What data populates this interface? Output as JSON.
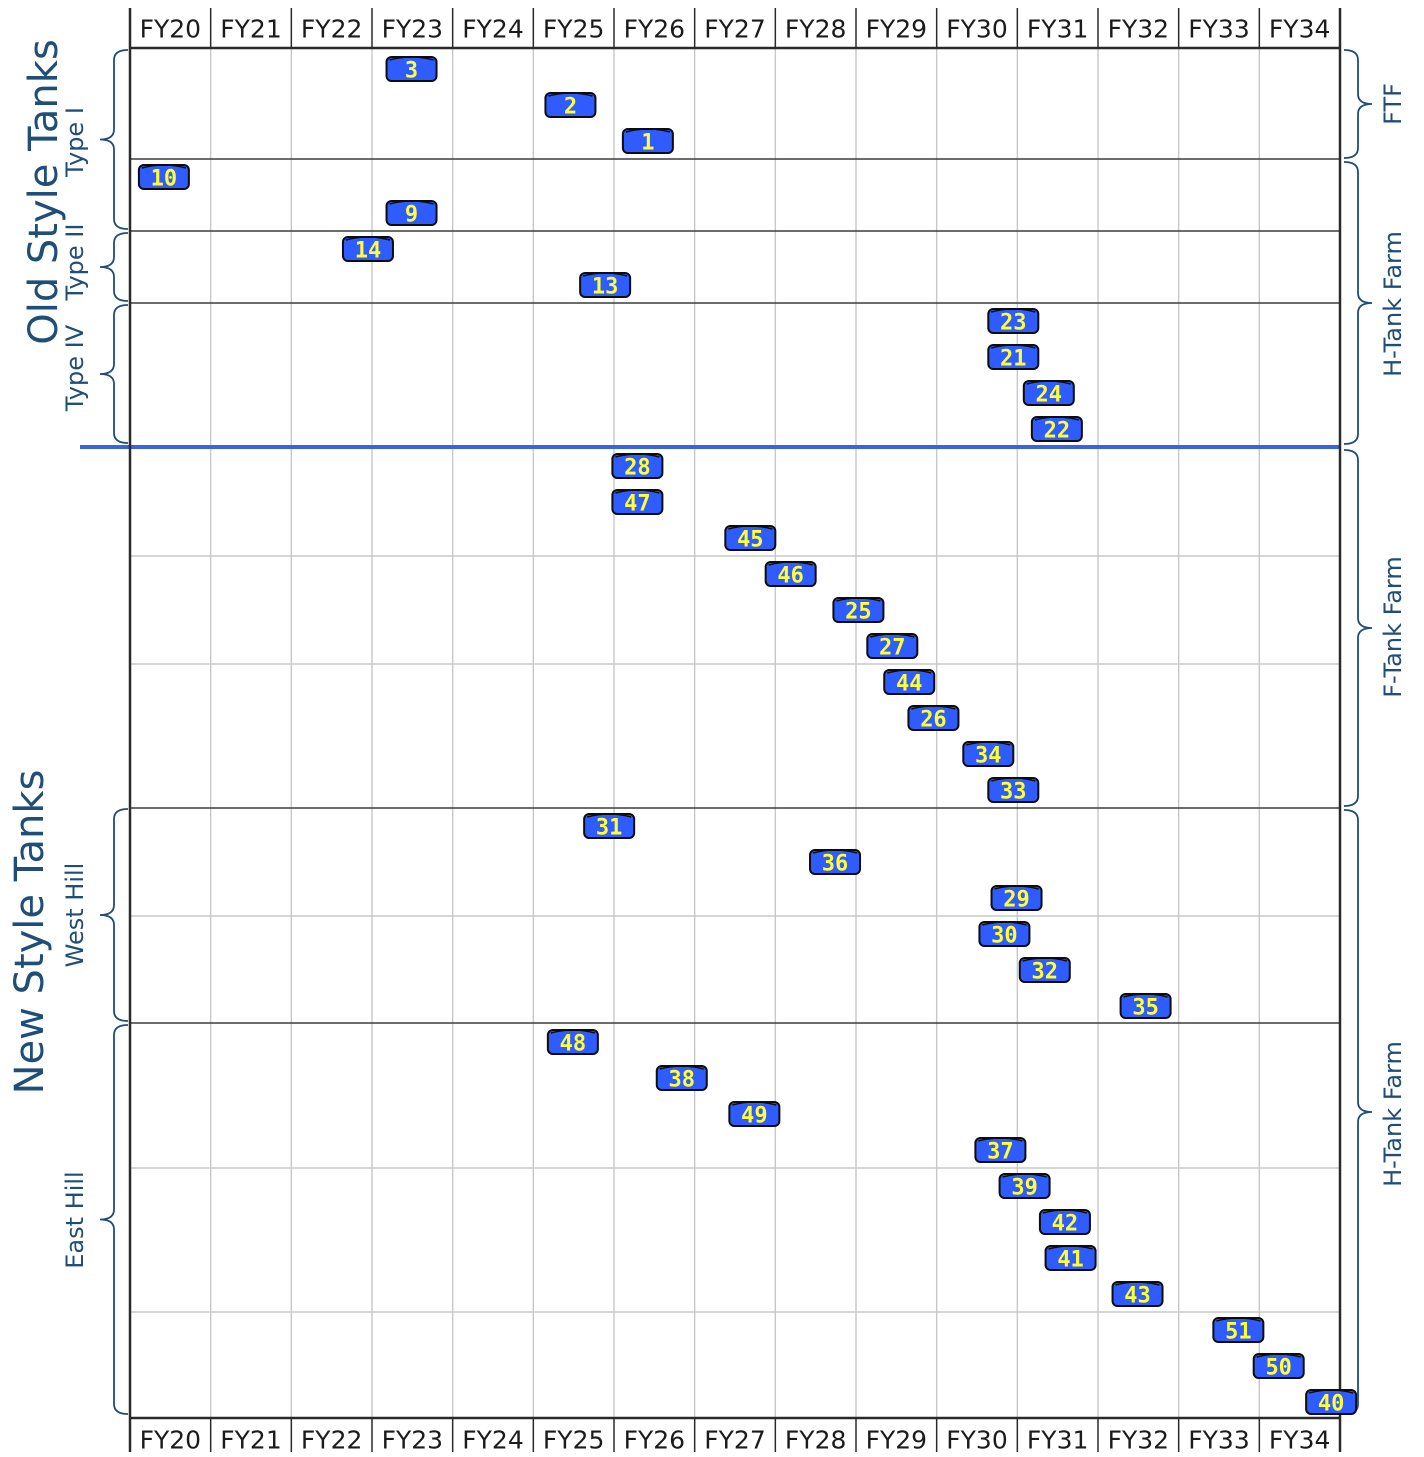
{
  "colors": {
    "tank_fill": "#2f5cff",
    "tank_text": "#ffff33",
    "label_text": "#1f4e79",
    "divider_blue": "#3a63e0",
    "grid": "#c8c8c8",
    "frame": "#2a2a2a"
  },
  "chart_data": {
    "type": "scatter",
    "x_categories": [
      "FY20",
      "FY21",
      "FY22",
      "FY23",
      "FY24",
      "FY25",
      "FY26",
      "FY27",
      "FY28",
      "FY29",
      "FY30",
      "FY31",
      "FY32",
      "FY33",
      "FY34"
    ],
    "y_axis": "row order (top to bottom)",
    "grid": true,
    "groups": {
      "old": "Old Style Tanks",
      "new": "New Style Tanks"
    },
    "subgroups": {
      "type1": "Type I",
      "type2": "Type II",
      "type4": "Type IV",
      "west": "West Hill",
      "east": "East Hill"
    },
    "farms": {
      "ftf": "FTF",
      "htf1": "H-Tank Farm",
      "ftf2": "F-Tank Farm",
      "htf2": "H-Tank Farm"
    },
    "tanks": [
      {
        "label": "3",
        "fy": 22.99,
        "row": 0
      },
      {
        "label": "2",
        "fy": 24.96,
        "row": 1
      },
      {
        "label": "1",
        "fy": 25.92,
        "row": 2
      },
      {
        "label": "10",
        "fy": 19.92,
        "row": 3
      },
      {
        "label": "9",
        "fy": 22.99,
        "row": 4
      },
      {
        "label": "14",
        "fy": 22.45,
        "row": 5
      },
      {
        "label": "13",
        "fy": 25.39,
        "row": 6
      },
      {
        "label": "23",
        "fy": 30.45,
        "row": 7
      },
      {
        "label": "21",
        "fy": 30.45,
        "row": 8
      },
      {
        "label": "24",
        "fy": 30.89,
        "row": 9
      },
      {
        "label": "22",
        "fy": 30.99,
        "row": 10
      },
      {
        "label": "28",
        "fy": 25.79,
        "row": 11
      },
      {
        "label": "47",
        "fy": 25.79,
        "row": 12
      },
      {
        "label": "45",
        "fy": 27.19,
        "row": 13
      },
      {
        "label": "46",
        "fy": 27.69,
        "row": 14
      },
      {
        "label": "25",
        "fy": 28.53,
        "row": 15
      },
      {
        "label": "27",
        "fy": 28.95,
        "row": 16
      },
      {
        "label": "44",
        "fy": 29.16,
        "row": 17
      },
      {
        "label": "26",
        "fy": 29.46,
        "row": 18
      },
      {
        "label": "34",
        "fy": 30.14,
        "row": 19
      },
      {
        "label": "33",
        "fy": 30.45,
        "row": 20
      },
      {
        "label": "31",
        "fy": 25.44,
        "row": 21
      },
      {
        "label": "36",
        "fy": 28.24,
        "row": 22
      },
      {
        "label": "29",
        "fy": 30.49,
        "row": 23
      },
      {
        "label": "30",
        "fy": 30.34,
        "row": 24
      },
      {
        "label": "32",
        "fy": 30.84,
        "row": 25
      },
      {
        "label": "35",
        "fy": 32.09,
        "row": 26
      },
      {
        "label": "48",
        "fy": 24.99,
        "row": 27
      },
      {
        "label": "38",
        "fy": 26.34,
        "row": 28
      },
      {
        "label": "49",
        "fy": 27.24,
        "row": 29
      },
      {
        "label": "37",
        "fy": 30.29,
        "row": 30
      },
      {
        "label": "39",
        "fy": 30.59,
        "row": 31
      },
      {
        "label": "42",
        "fy": 31.09,
        "row": 32
      },
      {
        "label": "41",
        "fy": 31.16,
        "row": 33
      },
      {
        "label": "43",
        "fy": 31.99,
        "row": 34
      },
      {
        "label": "51",
        "fy": 33.24,
        "row": 35
      },
      {
        "label": "50",
        "fy": 33.74,
        "row": 36
      },
      {
        "label": "40",
        "fy": 34.39,
        "row": 37
      }
    ]
  }
}
